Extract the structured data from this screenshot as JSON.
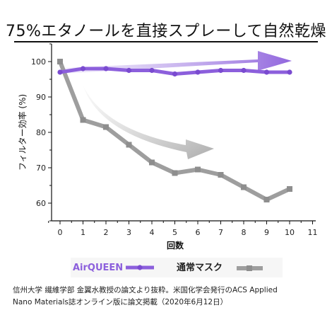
{
  "title": "75%エタノールを直接スプレーして自然乾燥",
  "colors": {
    "airqueen": "#8c5fdc",
    "normal_mask": "#9e9e9e",
    "axis": "#111111"
  },
  "chart_data": {
    "type": "line",
    "xlabel": "回数",
    "ylabel": "フィルター効率 (%)",
    "x": [
      0,
      1,
      2,
      3,
      4,
      5,
      6,
      7,
      8,
      9,
      10
    ],
    "xlim": [
      -0.5,
      11
    ],
    "xticks": [
      "0",
      "1",
      "2",
      "3",
      "4",
      "5",
      "6",
      "7",
      "8",
      "9",
      "10",
      "11"
    ],
    "ylim": [
      55,
      105
    ],
    "yticks": [
      "60",
      "70",
      "80",
      "90",
      "100"
    ],
    "series": [
      {
        "name": "AirQUEEN",
        "values": [
          97,
          98,
          98,
          97.5,
          97.5,
          96.5,
          97,
          97.5,
          97.5,
          97,
          97
        ],
        "color": "#8c5fdc"
      },
      {
        "name": "通常マスク",
        "values": [
          100,
          83.5,
          81.5,
          76.5,
          71.5,
          68.5,
          69.5,
          68,
          64.5,
          61,
          64
        ],
        "color": "#9e9e9e"
      }
    ],
    "legend_position": "bottom",
    "grid": false
  },
  "footnote": {
    "line1": "信州大学 繊維学部 金翼水教授の論文より抜粋。米国化学会発行のACS Applied",
    "line2": " Nano Materials誌オンライン版に論文掲載（2020年6月12日）"
  }
}
